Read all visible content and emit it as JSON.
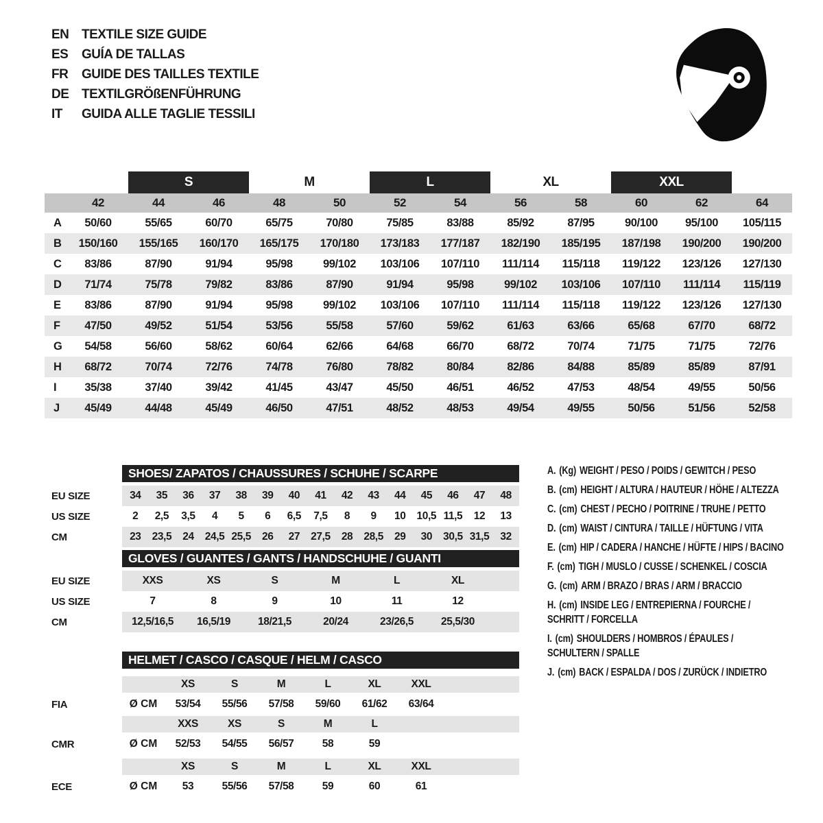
{
  "header": {
    "languages": [
      {
        "code": "EN",
        "text": "TEXTILE SIZE GUIDE"
      },
      {
        "code": "ES",
        "text": "GUÍA DE TALLAS"
      },
      {
        "code": "FR",
        "text": "GUIDE DES TAILLES TEXTILE"
      },
      {
        "code": "DE",
        "text": "TEXTILGRÖßENFÜHRUNG"
      },
      {
        "code": "IT",
        "text": "GUIDA ALLE TAGLIE TESSILI"
      }
    ],
    "icon": "racing-helmet"
  },
  "colors": {
    "dark_bar": "#212121",
    "group_box": "#262626",
    "number_band_gray": "#c6c6c6",
    "row_stripe_gray": "#e8e8e8",
    "sub_band_gray": "#e4e4e4",
    "text": "#1a1a1a"
  },
  "main_table": {
    "size_groups": [
      {
        "label": "S",
        "boxed": true
      },
      {
        "label": "M",
        "boxed": false
      },
      {
        "label": "L",
        "boxed": true
      },
      {
        "label": "XL",
        "boxed": false
      },
      {
        "label": "XXL",
        "boxed": true
      }
    ],
    "columns": [
      "42",
      "44",
      "46",
      "48",
      "50",
      "52",
      "54",
      "56",
      "58",
      "60",
      "62",
      "64"
    ],
    "rows": [
      {
        "key": "A",
        "values": [
          "50/60",
          "55/65",
          "60/70",
          "65/75",
          "70/80",
          "75/85",
          "83/88",
          "85/92",
          "87/95",
          "90/100",
          "95/100",
          "105/115"
        ]
      },
      {
        "key": "B",
        "values": [
          "150/160",
          "155/165",
          "160/170",
          "165/175",
          "170/180",
          "173/183",
          "177/187",
          "182/190",
          "185/195",
          "187/198",
          "190/200",
          "190/200"
        ]
      },
      {
        "key": "C",
        "values": [
          "83/86",
          "87/90",
          "91/94",
          "95/98",
          "99/102",
          "103/106",
          "107/110",
          "111/114",
          "115/118",
          "119/122",
          "123/126",
          "127/130"
        ]
      },
      {
        "key": "D",
        "values": [
          "71/74",
          "75/78",
          "79/82",
          "83/86",
          "87/90",
          "91/94",
          "95/98",
          "99/102",
          "103/106",
          "107/110",
          "111/114",
          "115/119"
        ]
      },
      {
        "key": "E",
        "values": [
          "83/86",
          "87/90",
          "91/94",
          "95/98",
          "99/102",
          "103/106",
          "107/110",
          "111/114",
          "115/118",
          "119/122",
          "123/126",
          "127/130"
        ]
      },
      {
        "key": "F",
        "values": [
          "47/50",
          "49/52",
          "51/54",
          "53/56",
          "55/58",
          "57/60",
          "59/62",
          "61/63",
          "63/66",
          "65/68",
          "67/70",
          "68/72"
        ]
      },
      {
        "key": "G",
        "values": [
          "54/58",
          "56/60",
          "58/62",
          "60/64",
          "62/66",
          "64/68",
          "66/70",
          "68/72",
          "70/74",
          "71/75",
          "71/75",
          "72/76"
        ]
      },
      {
        "key": "H",
        "values": [
          "68/72",
          "70/74",
          "72/76",
          "74/78",
          "76/80",
          "78/82",
          "80/84",
          "82/86",
          "84/88",
          "85/89",
          "85/89",
          "87/91"
        ]
      },
      {
        "key": "I",
        "values": [
          "35/38",
          "37/40",
          "39/42",
          "41/45",
          "43/47",
          "45/50",
          "46/51",
          "46/52",
          "47/53",
          "48/54",
          "49/55",
          "50/56"
        ]
      },
      {
        "key": "J",
        "values": [
          "45/49",
          "44/48",
          "45/49",
          "46/50",
          "47/51",
          "48/52",
          "48/53",
          "49/54",
          "49/55",
          "50/56",
          "51/56",
          "52/58"
        ]
      }
    ]
  },
  "shoes": {
    "title": "SHOES/ ZAPATOS / CHAUSSURES / SCHUHE / SCARPE",
    "rows": [
      {
        "label": "EU SIZE",
        "shaded": true,
        "values": [
          "34",
          "35",
          "36",
          "37",
          "38",
          "39",
          "40",
          "41",
          "42",
          "43",
          "44",
          "45",
          "46",
          "47",
          "48"
        ]
      },
      {
        "label": "US SIZE",
        "shaded": false,
        "values": [
          "2",
          "2,5",
          "3,5",
          "4",
          "5",
          "6",
          "6,5",
          "7,5",
          "8",
          "9",
          "10",
          "10,5",
          "11,5",
          "12",
          "13"
        ]
      },
      {
        "label": "CM",
        "shaded": true,
        "values": [
          "23",
          "23,5",
          "24",
          "24,5",
          "25,5",
          "26",
          "27",
          "27,5",
          "28",
          "28,5",
          "29",
          "30",
          "30,5",
          "31,5",
          "32"
        ]
      }
    ]
  },
  "gloves": {
    "title": "GLOVES / GUANTES / GANTS / HANDSCHUHE / GUANTI",
    "rows": [
      {
        "label": "EU SIZE",
        "shaded": true,
        "values": [
          "XXS",
          "XS",
          "S",
          "M",
          "L",
          "XL"
        ]
      },
      {
        "label": "US SIZE",
        "shaded": false,
        "values": [
          "7",
          "8",
          "9",
          "10",
          "11",
          "12"
        ]
      },
      {
        "label": "CM",
        "shaded": true,
        "values": [
          "12,5/16,5",
          "16,5/19",
          "18/21,5",
          "20/24",
          "23/26,5",
          "25,5/30"
        ]
      }
    ]
  },
  "helmet": {
    "title": "HELMET / CASCO / CASQUE / HELM / CASCO",
    "sections": [
      {
        "label": "FIA",
        "unit": "Ø CM",
        "sizes": [
          "XS",
          "S",
          "M",
          "L",
          "XL",
          "XXL"
        ],
        "values": [
          "53/54",
          "55/56",
          "57/58",
          "59/60",
          "61/62",
          "63/64"
        ]
      },
      {
        "label": "CMR",
        "unit": "Ø CM",
        "sizes": [
          "XXS",
          "XS",
          "S",
          "M",
          "L"
        ],
        "values": [
          "52/53",
          "54/55",
          "56/57",
          "58",
          "59"
        ]
      },
      {
        "label": "ECE",
        "unit": "Ø CM",
        "sizes": [
          "XS",
          "S",
          "M",
          "L",
          "XL",
          "XXL"
        ],
        "values": [
          "53",
          "55/56",
          "57/58",
          "59",
          "60",
          "61"
        ]
      }
    ]
  },
  "legend": {
    "items": [
      {
        "key": "A.",
        "unit": "(Kg)",
        "text": "WEIGHT / PESO / POIDS / GEWITCH / PESO"
      },
      {
        "key": "B.",
        "unit": "(cm)",
        "text": "HEIGHT / ALTURA / HAUTEUR / HÖHE / ALTEZZA"
      },
      {
        "key": "C.",
        "unit": "(cm)",
        "text": "CHEST / PECHO / POITRINE / TRUHE / PETTO"
      },
      {
        "key": "D.",
        "unit": "(cm)",
        "text": "WAIST / CINTURA / TAILLE / HÜFTUNG / VITA"
      },
      {
        "key": "E.",
        "unit": "(cm)",
        "text": "HIP / CADERA / HANCHE / HÜFTE / HIPS / BACINO"
      },
      {
        "key": "F.",
        "unit": "(cm)",
        "text": "TIGH / MUSLO / CUSSE / SCHENKEL / COSCIA"
      },
      {
        "key": "G.",
        "unit": "(cm)",
        "text": "ARM / BRAZO / BRAS / ARM / BRACCIO"
      },
      {
        "key": "H.",
        "unit": "(cm)",
        "text": "INSIDE LEG / ENTREPIERNA / FOURCHE /",
        "line2": "SCHRITT / FORCELLA"
      },
      {
        "key": "I.",
        "unit": "(cm)",
        "text": "SHOULDERS / HOMBROS / ÉPAULES /",
        "line2": "SCHULTERN / SPALLE"
      },
      {
        "key": "J.",
        "unit": "(cm)",
        "text": "BACK / ESPALDA / DOS / ZURÜCK / INDIETRO"
      }
    ]
  }
}
